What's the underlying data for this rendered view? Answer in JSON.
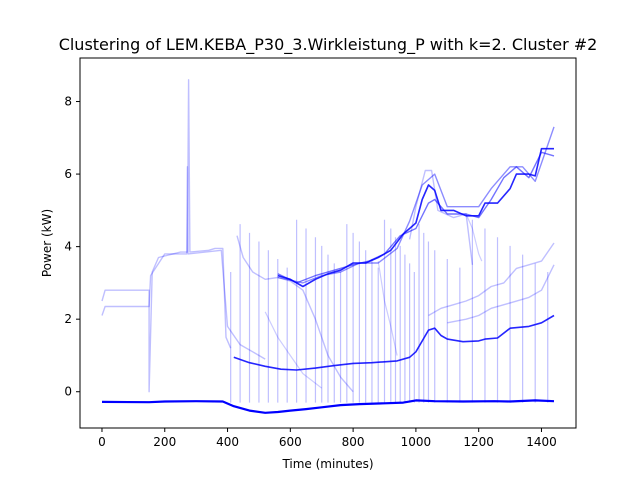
{
  "chart_data": {
    "type": "line",
    "title": "Clustering of LEM.KEBA_P30_3.Wirkleistung_P with k=2. Cluster #2",
    "xlabel": "Time (minutes)",
    "ylabel": "Power (kW)",
    "xlim": [
      -70,
      1510
    ],
    "ylim": [
      -1.0,
      9.2
    ],
    "xticks": [
      0,
      200,
      400,
      600,
      800,
      1000,
      1200,
      1400
    ],
    "yticks": [
      0,
      2,
      4,
      6,
      8
    ],
    "grid": false,
    "legend": "none",
    "colors": {
      "line": "#0000ff",
      "axes": "#000000",
      "background": "#ffffff"
    },
    "series": [
      {
        "opacity": 1.0,
        "width": 2.2,
        "points": [
          [
            0,
            -0.28
          ],
          [
            150,
            -0.29
          ],
          [
            200,
            -0.27
          ],
          [
            300,
            -0.26
          ],
          [
            385,
            -0.27
          ],
          [
            420,
            -0.4
          ],
          [
            470,
            -0.52
          ],
          [
            520,
            -0.58
          ],
          [
            560,
            -0.56
          ],
          [
            600,
            -0.52
          ],
          [
            650,
            -0.48
          ],
          [
            700,
            -0.43
          ],
          [
            760,
            -0.37
          ],
          [
            820,
            -0.34
          ],
          [
            900,
            -0.32
          ],
          [
            960,
            -0.3
          ],
          [
            1000,
            -0.24
          ],
          [
            1060,
            -0.26
          ],
          [
            1150,
            -0.27
          ],
          [
            1250,
            -0.26
          ],
          [
            1300,
            -0.27
          ],
          [
            1380,
            -0.24
          ],
          [
            1440,
            -0.26
          ]
        ]
      },
      {
        "opacity": 0.85,
        "width": 1.6,
        "points": [
          [
            420,
            0.95
          ],
          [
            470,
            0.8
          ],
          [
            520,
            0.7
          ],
          [
            570,
            0.62
          ],
          [
            620,
            0.6
          ],
          [
            680,
            0.65
          ],
          [
            740,
            0.72
          ],
          [
            800,
            0.78
          ],
          [
            860,
            0.8
          ],
          [
            940,
            0.85
          ],
          [
            980,
            0.95
          ],
          [
            1000,
            1.1
          ],
          [
            1040,
            1.7
          ],
          [
            1060,
            1.75
          ],
          [
            1080,
            1.55
          ],
          [
            1100,
            1.45
          ],
          [
            1150,
            1.38
          ],
          [
            1200,
            1.4
          ],
          [
            1220,
            1.45
          ],
          [
            1260,
            1.48
          ],
          [
            1300,
            1.75
          ],
          [
            1360,
            1.8
          ],
          [
            1400,
            1.9
          ],
          [
            1440,
            2.1
          ]
        ]
      },
      {
        "opacity": 0.85,
        "width": 1.6,
        "points": [
          [
            560,
            3.2
          ],
          [
            600,
            3.1
          ],
          [
            640,
            2.9
          ],
          [
            680,
            3.1
          ],
          [
            720,
            3.25
          ],
          [
            760,
            3.35
          ],
          [
            800,
            3.55
          ],
          [
            840,
            3.55
          ],
          [
            880,
            3.7
          ],
          [
            920,
            3.9
          ],
          [
            960,
            4.35
          ],
          [
            980,
            4.5
          ],
          [
            1000,
            4.65
          ],
          [
            1020,
            5.3
          ],
          [
            1040,
            5.7
          ],
          [
            1060,
            5.55
          ],
          [
            1080,
            5.0
          ],
          [
            1120,
            5.0
          ],
          [
            1160,
            4.85
          ],
          [
            1200,
            4.85
          ],
          [
            1220,
            5.2
          ],
          [
            1260,
            5.2
          ],
          [
            1300,
            5.6
          ],
          [
            1320,
            6.0
          ],
          [
            1360,
            6.0
          ],
          [
            1380,
            5.95
          ],
          [
            1400,
            6.7
          ],
          [
            1440,
            6.7
          ]
        ]
      },
      {
        "opacity": 0.55,
        "width": 1.4,
        "points": [
          [
            560,
            3.25
          ],
          [
            620,
            3.0
          ],
          [
            680,
            3.2
          ],
          [
            740,
            3.35
          ],
          [
            800,
            3.5
          ],
          [
            850,
            3.6
          ],
          [
            900,
            3.8
          ],
          [
            950,
            4.3
          ],
          [
            1000,
            4.5
          ],
          [
            1040,
            5.2
          ],
          [
            1060,
            5.3
          ],
          [
            1100,
            4.9
          ],
          [
            1160,
            4.9
          ],
          [
            1200,
            4.8
          ],
          [
            1240,
            5.3
          ],
          [
            1280,
            5.9
          ],
          [
            1320,
            6.2
          ],
          [
            1360,
            5.9
          ],
          [
            1400,
            6.6
          ],
          [
            1440,
            6.5
          ]
        ]
      },
      {
        "opacity": 0.45,
        "width": 1.4,
        "points": [
          [
            560,
            3.15
          ],
          [
            640,
            3.0
          ],
          [
            700,
            3.2
          ],
          [
            760,
            3.3
          ],
          [
            820,
            3.55
          ],
          [
            880,
            3.55
          ],
          [
            940,
            3.95
          ],
          [
            980,
            4.7
          ],
          [
            1020,
            5.7
          ],
          [
            1060,
            6.0
          ],
          [
            1100,
            5.1
          ],
          [
            1180,
            5.1
          ],
          [
            1200,
            5.1
          ],
          [
            1240,
            5.6
          ],
          [
            1300,
            6.2
          ],
          [
            1340,
            6.2
          ],
          [
            1380,
            5.8
          ],
          [
            1420,
            6.8
          ],
          [
            1440,
            7.3
          ]
        ]
      },
      {
        "opacity": 0.25,
        "width": 1.4,
        "points": [
          [
            0,
            2.5
          ],
          [
            10,
            2.8
          ],
          [
            150,
            2.8
          ],
          [
            150,
            0.0
          ],
          [
            160,
            3.3
          ],
          [
            180,
            3.7
          ],
          [
            250,
            3.85
          ],
          [
            272,
            3.85
          ],
          [
            276,
            8.6
          ],
          [
            280,
            3.85
          ],
          [
            340,
            3.9
          ],
          [
            360,
            3.95
          ],
          [
            385,
            3.95
          ],
          [
            395,
            1.5
          ],
          [
            410,
            1.2
          ]
        ]
      },
      {
        "opacity": 0.25,
        "width": 1.4,
        "points": [
          [
            0,
            2.1
          ],
          [
            10,
            2.35
          ],
          [
            150,
            2.35
          ],
          [
            155,
            3.2
          ],
          [
            200,
            3.8
          ],
          [
            270,
            3.8
          ],
          [
            272,
            6.2
          ],
          [
            274,
            3.8
          ],
          [
            380,
            3.9
          ],
          [
            400,
            1.8
          ],
          [
            440,
            1.3
          ],
          [
            480,
            1.1
          ],
          [
            520,
            0.9
          ]
        ]
      },
      {
        "opacity": 0.25,
        "width": 1.4,
        "points": [
          [
            430,
            4.3
          ],
          [
            450,
            3.7
          ],
          [
            480,
            3.3
          ],
          [
            520,
            3.1
          ],
          [
            560,
            3.15
          ],
          [
            600,
            3.05
          ],
          [
            640,
            2.8
          ],
          [
            680,
            2.0
          ],
          [
            720,
            1.0
          ],
          [
            760,
            0.4
          ],
          [
            800,
            0.0
          ]
        ]
      },
      {
        "opacity": 0.25,
        "width": 1.4,
        "points": [
          [
            1040,
            2.1
          ],
          [
            1080,
            2.3
          ],
          [
            1120,
            2.4
          ],
          [
            1160,
            2.5
          ],
          [
            1200,
            2.65
          ],
          [
            1240,
            2.9
          ],
          [
            1280,
            3.0
          ],
          [
            1320,
            3.4
          ],
          [
            1360,
            3.5
          ],
          [
            1400,
            3.6
          ],
          [
            1440,
            4.1
          ]
        ]
      },
      {
        "opacity": 0.25,
        "width": 1.4,
        "points": [
          [
            1100,
            1.9
          ],
          [
            1160,
            2.0
          ],
          [
            1200,
            2.1
          ],
          [
            1240,
            2.3
          ],
          [
            1300,
            2.45
          ],
          [
            1360,
            2.6
          ],
          [
            1400,
            2.8
          ],
          [
            1440,
            3.5
          ]
        ]
      },
      {
        "opacity": 0.25,
        "width": 1.4,
        "points": [
          [
            980,
            4.2
          ],
          [
            1000,
            5.1
          ],
          [
            1030,
            6.1
          ],
          [
            1050,
            6.1
          ],
          [
            1070,
            5.0
          ],
          [
            1120,
            4.8
          ],
          [
            1160,
            4.9
          ],
          [
            1180,
            3.5
          ]
        ]
      },
      {
        "opacity": 0.2,
        "width": 1.2,
        "points": [
          [
            520,
            2.2
          ],
          [
            560,
            1.5
          ],
          [
            600,
            1.0
          ],
          [
            640,
            0.5
          ],
          [
            700,
            0.1
          ]
        ]
      },
      {
        "opacity": 0.2,
        "width": 1.2,
        "points": [
          [
            880,
            3.6
          ],
          [
            900,
            2.5
          ],
          [
            920,
            1.8
          ],
          [
            940,
            1.0
          ]
        ]
      },
      {
        "opacity": 0.2,
        "width": 1.2,
        "points": [
          [
            1160,
            4.9
          ],
          [
            1180,
            4.5
          ],
          [
            1200,
            3.8
          ],
          [
            1210,
            3.6
          ]
        ]
      }
    ],
    "spikes": {
      "opacity": 0.25,
      "low": -0.3,
      "high": 3.3,
      "x": [
        410,
        440,
        470,
        500,
        530,
        560,
        590,
        620,
        650,
        680,
        700,
        720,
        740,
        760,
        780,
        800,
        820,
        840,
        860,
        880,
        900,
        920,
        935,
        950,
        965,
        980,
        995,
        1010,
        1025,
        1040,
        1060,
        1100,
        1140,
        1180,
        1220,
        1260,
        1300,
        1340,
        1380,
        1420
      ]
    }
  }
}
